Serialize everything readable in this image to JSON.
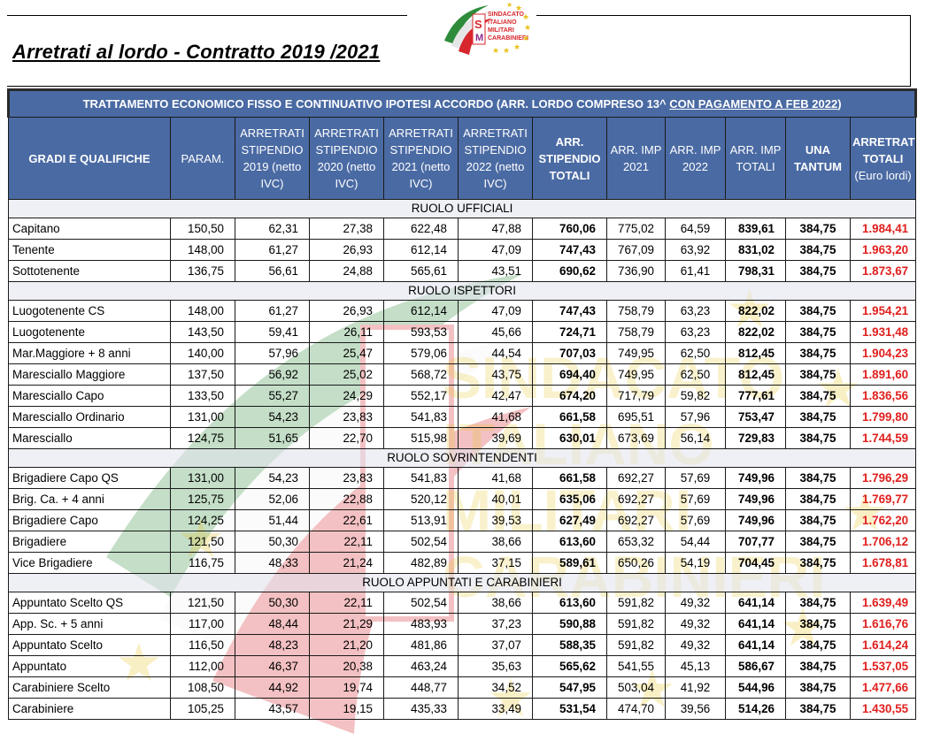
{
  "document": {
    "title": "Arretrati al lordo - Contratto 2019 /2021",
    "logo_lines": [
      "SINDACATO",
      "ITALIANO",
      "MILITARI",
      "CARABINIERI"
    ],
    "logo_monogram": "SIM",
    "watermark_lines": [
      "SINDACATO",
      "ITALIANO",
      "MILITARI",
      "CARABINIERI"
    ]
  },
  "table": {
    "banner_prefix": "TRATTAMENTO ECONOMICO FISSO E CONTINUATIVO IPOTESI ACCORDO (ARR. LORDO COMPRESO 13^ ",
    "banner_link": "CON PAGAMENTO A FEB 2022",
    "banner_suffix": ")",
    "headers": [
      {
        "text": "GRADI E QUALIFICHE",
        "bold": true
      },
      {
        "text": "PARAM.",
        "bold": false
      },
      {
        "text": "ARRETRATI STIPENDIO 2019 (netto IVC)",
        "bold": false
      },
      {
        "text": "ARRETRATI STIPENDIO 2020 (netto IVC)",
        "bold": false
      },
      {
        "text": "ARRETRATI STIPENDIO 2021 (netto IVC)",
        "bold": false
      },
      {
        "text": "ARRETRATI STIPENDIO 2022 (netto IVC)",
        "bold": false
      },
      {
        "text": "ARR. STIPENDIO TOTALI",
        "bold": true
      },
      {
        "text": "ARR. IMP 2021",
        "bold": false
      },
      {
        "text": "ARR. IMP 2022",
        "bold": false
      },
      {
        "text": "ARR. IMP TOTALI",
        "bold": false
      },
      {
        "text": "UNA TANTUM",
        "bold": true
      },
      {
        "text": "ARRETRATI TOTALI",
        "sub": "(Euro lordi)",
        "bold": true
      }
    ],
    "sections": [
      {
        "title": "RUOLO UFFICIALI",
        "rows": [
          [
            "Capitano",
            "150,50",
            "62,31",
            "27,38",
            "622,48",
            "47,88",
            "760,06",
            "775,02",
            "64,59",
            "839,61",
            "384,75",
            "1.984,41"
          ],
          [
            "Tenente",
            "148,00",
            "61,27",
            "26,93",
            "612,14",
            "47,09",
            "747,43",
            "767,09",
            "63,92",
            "831,02",
            "384,75",
            "1.963,20"
          ],
          [
            "Sottotenente",
            "136,75",
            "56,61",
            "24,88",
            "565,61",
            "43,51",
            "690,62",
            "736,90",
            "61,41",
            "798,31",
            "384,75",
            "1.873,67"
          ]
        ]
      },
      {
        "title": "RUOLO ISPETTORI",
        "rows": [
          [
            "Luogotenente CS",
            "148,00",
            "61,27",
            "26,93",
            "612,14",
            "47,09",
            "747,43",
            "758,79",
            "63,23",
            "822,02",
            "384,75",
            "1.954,21"
          ],
          [
            "Luogotenente",
            "143,50",
            "59,41",
            "26,11",
            "593,53",
            "45,66",
            "724,71",
            "758,79",
            "63,23",
            "822,02",
            "384,75",
            "1.931,48"
          ],
          [
            "Mar.Maggiore + 8 anni",
            "140,00",
            "57,96",
            "25,47",
            "579,06",
            "44,54",
            "707,03",
            "749,95",
            "62,50",
            "812,45",
            "384,75",
            "1.904,23"
          ],
          [
            "Maresciallo Maggiore",
            "137,50",
            "56,92",
            "25,02",
            "568,72",
            "43,75",
            "694,40",
            "749,95",
            "62,50",
            "812,45",
            "384,75",
            "1.891,60"
          ],
          [
            "Maresciallo Capo",
            "133,50",
            "55,27",
            "24,29",
            "552,17",
            "42,47",
            "674,20",
            "717,79",
            "59,82",
            "777,61",
            "384,75",
            "1.836,56"
          ],
          [
            "Maresciallo Ordinario",
            "131,00",
            "54,23",
            "23,83",
            "541,83",
            "41,68",
            "661,58",
            "695,51",
            "57,96",
            "753,47",
            "384,75",
            "1.799,80"
          ],
          [
            "Maresciallo",
            "124,75",
            "51,65",
            "22,70",
            "515,98",
            "39,69",
            "630,01",
            "673,69",
            "56,14",
            "729,83",
            "384,75",
            "1.744,59"
          ]
        ]
      },
      {
        "title": "RUOLO SOVRINTENDENTI",
        "rows": [
          [
            "Brigadiere Capo QS",
            "131,00",
            "54,23",
            "23,83",
            "541,83",
            "41,68",
            "661,58",
            "692,27",
            "57,69",
            "749,96",
            "384,75",
            "1.796,29"
          ],
          [
            "Brig. Ca. + 4 anni",
            "125,75",
            "52,06",
            "22,88",
            "520,12",
            "40,01",
            "635,06",
            "692,27",
            "57,69",
            "749,96",
            "384,75",
            "1.769,77"
          ],
          [
            "Brigadiere Capo",
            "124,25",
            "51,44",
            "22,61",
            "513,91",
            "39,53",
            "627,49",
            "692,27",
            "57,69",
            "749,96",
            "384,75",
            "1.762,20"
          ],
          [
            "Brigadiere",
            "121,50",
            "50,30",
            "22,11",
            "502,54",
            "38,66",
            "613,60",
            "653,32",
            "54,44",
            "707,77",
            "384,75",
            "1.706,12"
          ],
          [
            "Vice Brigadiere",
            "116,75",
            "48,33",
            "21,24",
            "482,89",
            "37,15",
            "589,61",
            "650,26",
            "54,19",
            "704,45",
            "384,75",
            "1.678,81"
          ]
        ]
      },
      {
        "title": "RUOLO APPUNTATI E CARABINIERI",
        "rows": [
          [
            "Appuntato Scelto QS",
            "121,50",
            "50,30",
            "22,11",
            "502,54",
            "38,66",
            "613,60",
            "591,82",
            "49,32",
            "641,14",
            "384,75",
            "1.639,49"
          ],
          [
            "App. Sc. + 5 anni",
            "117,00",
            "48,44",
            "21,29",
            "483,93",
            "37,23",
            "590,88",
            "591,82",
            "49,32",
            "641,14",
            "384,75",
            "1.616,76"
          ],
          [
            "Appuntato Scelto",
            "116,50",
            "48,23",
            "21,20",
            "481,86",
            "37,07",
            "588,35",
            "591,82",
            "49,32",
            "641,14",
            "384,75",
            "1.614,24"
          ],
          [
            "Appuntato",
            "112,00",
            "46,37",
            "20,38",
            "463,24",
            "35,63",
            "565,62",
            "541,55",
            "45,13",
            "586,67",
            "384,75",
            "1.537,05"
          ],
          [
            "Carabiniere Scelto",
            "108,50",
            "44,92",
            "19,74",
            "448,77",
            "34,52",
            "547,95",
            "503,04",
            "41,92",
            "544,96",
            "384,75",
            "1.477,66"
          ],
          [
            "Carabiniere",
            "105,25",
            "43,57",
            "19,15",
            "435,33",
            "33,49",
            "531,54",
            "474,70",
            "39,56",
            "514,26",
            "384,75",
            "1.430,55"
          ]
        ]
      }
    ]
  },
  "colors": {
    "header_blue": "#4a6aa3",
    "total_red": "#e0201e",
    "flag_green": "#2e8b3a",
    "flag_red": "#d7262c",
    "star_gold": "#e8c21a"
  }
}
